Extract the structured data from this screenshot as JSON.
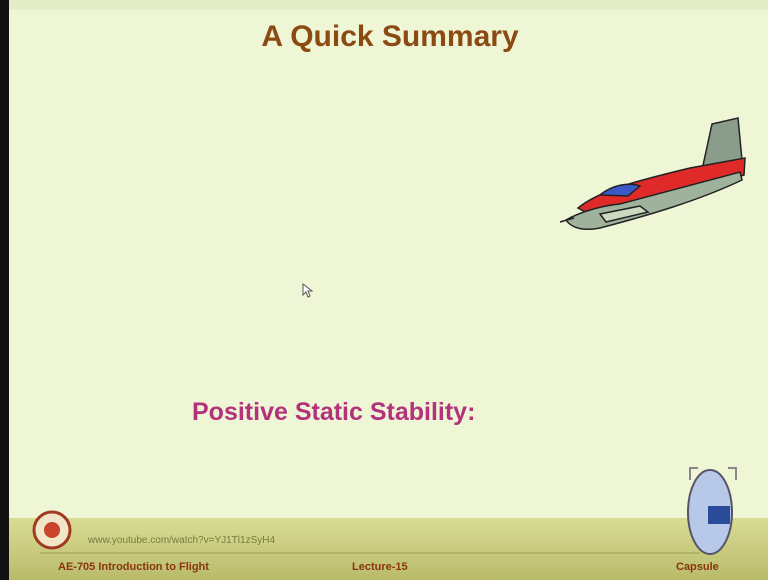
{
  "slide": {
    "title": "A Quick Summary",
    "subtitle": "Positive Static Stability:"
  },
  "footer": {
    "url": "www.youtube.com/watch?v=YJ1Tl1zSyH4",
    "course": "AE-705 Introduction to Flight",
    "lecture": "Lecture-15",
    "capsule": "Capsule"
  }
}
